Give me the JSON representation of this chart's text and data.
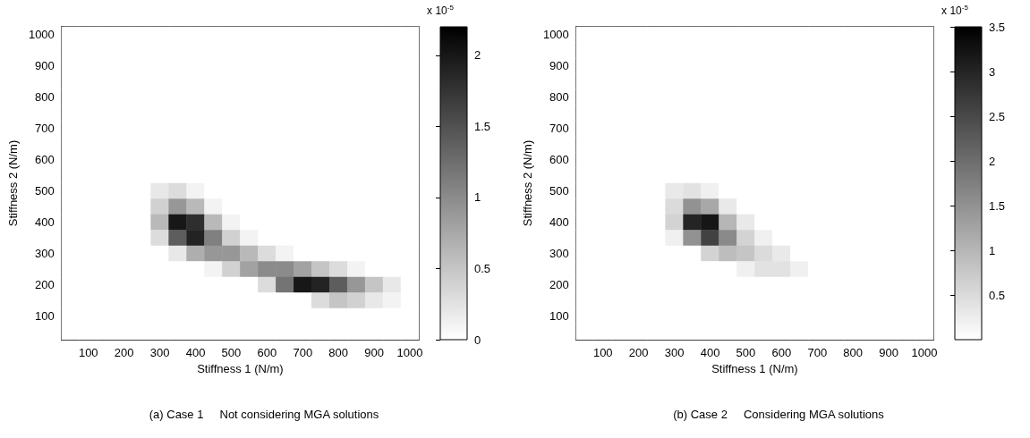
{
  "chart_data": [
    {
      "type": "heatmap",
      "title": "(a) Case 1     Not considering MGA solutions",
      "xlabel": "Stiffness 1 (N/m)",
      "ylabel": "Stiffness 2 (N/m)",
      "clabel": "x 10$^{-5}$",
      "categories": [
        null,
        "100",
        null,
        "200",
        null,
        "300",
        null,
        "400",
        null,
        "500",
        null,
        "600",
        null,
        "700",
        null,
        "800",
        null,
        "900",
        null,
        "1000"
      ],
      "y_categories": [
        "1000",
        null,
        "900",
        null,
        "800",
        null,
        "700",
        null,
        "600",
        null,
        "500",
        null,
        "400",
        null,
        "300",
        null,
        "200",
        null,
        "100",
        null
      ],
      "clim": [
        0,
        2.2
      ],
      "cticks": [
        0,
        0.5,
        1,
        1.5,
        2
      ],
      "cells": [
        [
          0,
          0,
          0,
          0,
          0,
          0,
          0,
          0,
          0,
          0,
          0,
          0,
          0,
          0,
          0,
          0,
          0,
          0,
          0,
          0
        ],
        [
          0,
          0,
          0,
          0,
          0,
          0,
          0,
          0,
          0,
          0,
          0,
          0,
          0,
          0,
          0,
          0,
          0,
          0,
          0,
          0
        ],
        [
          0,
          0,
          0,
          0,
          0,
          0,
          0,
          0,
          0,
          0,
          0,
          0,
          0,
          0,
          0,
          0,
          0,
          0,
          0,
          0
        ],
        [
          0,
          0,
          0,
          0,
          0,
          0,
          0,
          0,
          0,
          0,
          0,
          0,
          0,
          0,
          0,
          0,
          0,
          0,
          0,
          0
        ],
        [
          0,
          0,
          0,
          0,
          0,
          0,
          0,
          0,
          0,
          0,
          0,
          0,
          0,
          0,
          0,
          0,
          0,
          0,
          0,
          0
        ],
        [
          0,
          0,
          0,
          0,
          0,
          0,
          0,
          0,
          0,
          0,
          0,
          0,
          0,
          0,
          0,
          0,
          0,
          0,
          0,
          0
        ],
        [
          0,
          0,
          0,
          0,
          0,
          0,
          0,
          0,
          0,
          0,
          0,
          0,
          0,
          0,
          0,
          0,
          0,
          0,
          0,
          0
        ],
        [
          0,
          0,
          0,
          0,
          0,
          0,
          0,
          0,
          0,
          0,
          0,
          0,
          0,
          0,
          0,
          0,
          0,
          0,
          0,
          0
        ],
        [
          0,
          0,
          0,
          0,
          0,
          0,
          0,
          0,
          0,
          0,
          0,
          0,
          0,
          0,
          0,
          0,
          0,
          0,
          0,
          0
        ],
        [
          0,
          0,
          0,
          0,
          0,
          0,
          0,
          0,
          0,
          0,
          0,
          0,
          0,
          0,
          0,
          0,
          0,
          0,
          0,
          0
        ],
        [
          0,
          0,
          0,
          0,
          0,
          0.2,
          0.3,
          0.1,
          0,
          0,
          0,
          0,
          0,
          0,
          0,
          0,
          0,
          0,
          0,
          0
        ],
        [
          0,
          0,
          0,
          0,
          0,
          0.4,
          0.9,
          0.6,
          0.1,
          0,
          0,
          0,
          0,
          0,
          0,
          0,
          0,
          0,
          0,
          0
        ],
        [
          0,
          0,
          0,
          0,
          0,
          0.6,
          2.0,
          1.8,
          0.6,
          0.1,
          0,
          0,
          0,
          0,
          0,
          0,
          0,
          0,
          0,
          0
        ],
        [
          0,
          0,
          0,
          0,
          0,
          0.3,
          1.4,
          1.9,
          1.1,
          0.4,
          0.1,
          0,
          0,
          0,
          0,
          0,
          0,
          0,
          0,
          0
        ],
        [
          0,
          0,
          0,
          0,
          0,
          0,
          0.2,
          0.7,
          0.9,
          0.9,
          0.6,
          0.3,
          0.1,
          0,
          0,
          0,
          0,
          0,
          0,
          0
        ],
        [
          0,
          0,
          0,
          0,
          0,
          0,
          0,
          0,
          0.1,
          0.4,
          0.8,
          1.0,
          1.0,
          0.8,
          0.5,
          0.3,
          0.1,
          0,
          0,
          0
        ],
        [
          0,
          0,
          0,
          0,
          0,
          0,
          0,
          0,
          0,
          0,
          0,
          0.3,
          1.2,
          2.0,
          1.9,
          1.4,
          0.9,
          0.5,
          0.2,
          0
        ],
        [
          0,
          0,
          0,
          0,
          0,
          0,
          0,
          0,
          0,
          0,
          0,
          0,
          0,
          0,
          0.3,
          0.5,
          0.4,
          0.2,
          0.1,
          0
        ],
        [
          0,
          0,
          0,
          0,
          0,
          0,
          0,
          0,
          0,
          0,
          0,
          0,
          0,
          0,
          0,
          0,
          0,
          0,
          0,
          0
        ],
        [
          0,
          0,
          0,
          0,
          0,
          0,
          0,
          0,
          0,
          0,
          0,
          0,
          0,
          0,
          0,
          0,
          0,
          0,
          0,
          0
        ]
      ]
    },
    {
      "type": "heatmap",
      "title": "(b) Case 2     Considering MGA solutions",
      "xlabel": "Stiffness 1 (N/m)",
      "ylabel": "Stiffness 2 (N/m)",
      "clabel": "x 10$^{-5}$",
      "categories": [
        null,
        "100",
        null,
        "200",
        null,
        "300",
        null,
        "400",
        null,
        "500",
        null,
        "600",
        null,
        "700",
        null,
        "800",
        null,
        "900",
        null,
        "1000"
      ],
      "y_categories": [
        "1000",
        null,
        "900",
        null,
        "800",
        null,
        "700",
        null,
        "600",
        null,
        "500",
        null,
        "400",
        null,
        "300",
        null,
        "200",
        null,
        "100",
        null
      ],
      "clim": [
        0,
        3.5
      ],
      "cticks": [
        0.5,
        1,
        1.5,
        2,
        2.5,
        3,
        3.5
      ],
      "cells": [
        [
          0,
          0,
          0,
          0,
          0,
          0,
          0,
          0,
          0,
          0,
          0,
          0,
          0,
          0,
          0,
          0,
          0,
          0,
          0,
          0
        ],
        [
          0,
          0,
          0,
          0,
          0,
          0,
          0,
          0,
          0,
          0,
          0,
          0,
          0,
          0,
          0,
          0,
          0,
          0,
          0,
          0
        ],
        [
          0,
          0,
          0,
          0,
          0,
          0,
          0,
          0,
          0,
          0,
          0,
          0,
          0,
          0,
          0,
          0,
          0,
          0,
          0,
          0
        ],
        [
          0,
          0,
          0,
          0,
          0,
          0,
          0,
          0,
          0,
          0,
          0,
          0,
          0,
          0,
          0,
          0,
          0,
          0,
          0,
          0
        ],
        [
          0,
          0,
          0,
          0,
          0,
          0,
          0,
          0,
          0,
          0,
          0,
          0,
          0,
          0,
          0,
          0,
          0,
          0,
          0,
          0
        ],
        [
          0,
          0,
          0,
          0,
          0,
          0,
          0,
          0,
          0,
          0,
          0,
          0,
          0,
          0,
          0,
          0,
          0,
          0,
          0,
          0
        ],
        [
          0,
          0,
          0,
          0,
          0,
          0,
          0,
          0,
          0,
          0,
          0,
          0,
          0,
          0,
          0,
          0,
          0,
          0,
          0,
          0
        ],
        [
          0,
          0,
          0,
          0,
          0,
          0,
          0,
          0,
          0,
          0,
          0,
          0,
          0,
          0,
          0,
          0,
          0,
          0,
          0,
          0
        ],
        [
          0,
          0,
          0,
          0,
          0,
          0,
          0,
          0,
          0,
          0,
          0,
          0,
          0,
          0,
          0,
          0,
          0,
          0,
          0,
          0
        ],
        [
          0,
          0,
          0,
          0,
          0,
          0,
          0,
          0,
          0,
          0,
          0,
          0,
          0,
          0,
          0,
          0,
          0,
          0,
          0,
          0
        ],
        [
          0,
          0,
          0,
          0,
          0,
          0.3,
          0.4,
          0.2,
          0,
          0,
          0,
          0,
          0,
          0,
          0,
          0,
          0,
          0,
          0,
          0
        ],
        [
          0,
          0,
          0,
          0,
          0,
          0.5,
          1.5,
          1.2,
          0.3,
          0,
          0,
          0,
          0,
          0,
          0,
          0,
          0,
          0,
          0,
          0
        ],
        [
          0,
          0,
          0,
          0,
          0,
          0.6,
          3.0,
          3.2,
          1.0,
          0.3,
          0,
          0,
          0,
          0,
          0,
          0,
          0,
          0,
          0,
          0
        ],
        [
          0,
          0,
          0,
          0,
          0,
          0.2,
          1.5,
          2.6,
          1.6,
          0.6,
          0.2,
          0,
          0,
          0,
          0,
          0,
          0,
          0,
          0,
          0
        ],
        [
          0,
          0,
          0,
          0,
          0,
          0,
          0,
          0.6,
          0.9,
          0.8,
          0.5,
          0.3,
          0,
          0,
          0,
          0,
          0,
          0,
          0,
          0
        ],
        [
          0,
          0,
          0,
          0,
          0,
          0,
          0,
          0,
          0,
          0.2,
          0.4,
          0.4,
          0.2,
          0,
          0,
          0,
          0,
          0,
          0,
          0
        ],
        [
          0,
          0,
          0,
          0,
          0,
          0,
          0,
          0,
          0,
          0,
          0,
          0,
          0,
          0,
          0,
          0,
          0,
          0,
          0,
          0
        ],
        [
          0,
          0,
          0,
          0,
          0,
          0,
          0,
          0,
          0,
          0,
          0,
          0,
          0,
          0,
          0,
          0,
          0,
          0,
          0,
          0
        ],
        [
          0,
          0,
          0,
          0,
          0,
          0,
          0,
          0,
          0,
          0,
          0,
          0,
          0,
          0,
          0,
          0,
          0,
          0,
          0,
          0
        ],
        [
          0,
          0,
          0,
          0,
          0,
          0,
          0,
          0,
          0,
          0,
          0,
          0,
          0,
          0,
          0,
          0,
          0,
          0,
          0,
          0
        ]
      ]
    }
  ]
}
